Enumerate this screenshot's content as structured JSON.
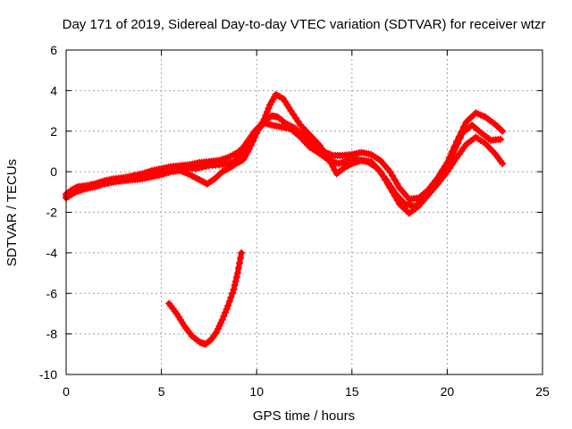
{
  "chart_data": {
    "type": "scatter",
    "title": "Day 171 of 2019, Sidereal Day-to-day VTEC variation (SDTVAR) for receiver wtzr",
    "xlabel": "GPS time / hours",
    "ylabel": "SDTVAR / TECUs",
    "xlim": [
      0,
      25
    ],
    "ylim": [
      -10,
      6
    ],
    "xticks": [
      0,
      5,
      10,
      15,
      20,
      25
    ],
    "yticks": [
      -10,
      -8,
      -6,
      -4,
      -2,
      0,
      2,
      4,
      6
    ],
    "grid": true,
    "marker": "+",
    "series": [
      {
        "name": "main-trace-upper",
        "color": "#ff0000",
        "points": [
          [
            0.0,
            -1.1
          ],
          [
            0.3,
            -0.9
          ],
          [
            0.6,
            -0.75
          ],
          [
            1.0,
            -0.7
          ],
          [
            1.5,
            -0.6
          ],
          [
            2.0,
            -0.45
          ],
          [
            2.5,
            -0.35
          ],
          [
            3.0,
            -0.3
          ],
          [
            3.5,
            -0.2
          ],
          [
            4.0,
            -0.1
          ],
          [
            4.5,
            0.05
          ],
          [
            5.0,
            0.15
          ],
          [
            5.5,
            0.25
          ],
          [
            6.0,
            0.3
          ],
          [
            6.5,
            0.35
          ],
          [
            7.0,
            0.45
          ],
          [
            7.5,
            0.5
          ],
          [
            8.0,
            0.55
          ],
          [
            8.5,
            0.7
          ],
          [
            9.0,
            0.95
          ],
          [
            9.3,
            1.2
          ],
          [
            9.6,
            1.6
          ],
          [
            9.9,
            2.0
          ],
          [
            10.2,
            2.3
          ],
          [
            10.5,
            2.6
          ],
          [
            10.8,
            2.75
          ],
          [
            11.1,
            2.7
          ],
          [
            11.5,
            2.4
          ],
          [
            12.0,
            2.15
          ],
          [
            12.5,
            1.75
          ],
          [
            13.0,
            1.35
          ],
          [
            13.5,
            1.0
          ],
          [
            14.0,
            0.8
          ],
          [
            14.5,
            0.8
          ],
          [
            15.0,
            0.85
          ],
          [
            15.5,
            0.95
          ],
          [
            16.0,
            0.85
          ],
          [
            16.5,
            0.55
          ],
          [
            17.0,
            0.0
          ],
          [
            17.5,
            -0.8
          ],
          [
            18.0,
            -1.35
          ],
          [
            18.5,
            -1.3
          ],
          [
            19.0,
            -0.9
          ],
          [
            19.5,
            -0.3
          ],
          [
            20.0,
            0.45
          ],
          [
            20.5,
            1.5
          ],
          [
            21.0,
            2.45
          ],
          [
            21.5,
            2.9
          ],
          [
            22.0,
            2.7
          ],
          [
            22.5,
            2.35
          ],
          [
            22.9,
            2.0
          ]
        ]
      },
      {
        "name": "main-trace-lower",
        "color": "#ff0000",
        "points": [
          [
            0.0,
            -1.3
          ],
          [
            0.5,
            -1.0
          ],
          [
            1.0,
            -0.85
          ],
          [
            1.5,
            -0.75
          ],
          [
            2.0,
            -0.6
          ],
          [
            2.5,
            -0.5
          ],
          [
            3.0,
            -0.45
          ],
          [
            3.5,
            -0.4
          ],
          [
            4.0,
            -0.35
          ],
          [
            4.5,
            -0.25
          ],
          [
            5.0,
            -0.15
          ],
          [
            5.5,
            0.0
          ],
          [
            6.0,
            0.05
          ],
          [
            6.5,
            -0.15
          ],
          [
            7.0,
            -0.4
          ],
          [
            7.4,
            -0.6
          ],
          [
            7.8,
            -0.35
          ],
          [
            8.2,
            0.0
          ],
          [
            8.6,
            0.2
          ],
          [
            9.0,
            0.45
          ],
          [
            9.3,
            0.6
          ],
          [
            9.6,
            1.1
          ],
          [
            10.0,
            1.9
          ],
          [
            10.4,
            2.6
          ],
          [
            10.7,
            3.3
          ],
          [
            11.0,
            3.8
          ],
          [
            11.4,
            3.6
          ],
          [
            11.8,
            3.0
          ],
          [
            12.3,
            2.3
          ],
          [
            12.8,
            1.8
          ],
          [
            13.3,
            1.3
          ],
          [
            13.8,
            0.6
          ],
          [
            14.2,
            -0.1
          ],
          [
            14.6,
            0.2
          ],
          [
            15.0,
            0.4
          ],
          [
            15.5,
            0.55
          ],
          [
            16.0,
            0.5
          ],
          [
            16.5,
            0.0
          ],
          [
            17.0,
            -0.8
          ],
          [
            17.5,
            -1.6
          ],
          [
            18.0,
            -2.05
          ],
          [
            18.5,
            -1.7
          ],
          [
            19.0,
            -1.15
          ],
          [
            19.5,
            -0.6
          ],
          [
            20.0,
            0.0
          ],
          [
            20.5,
            0.7
          ],
          [
            21.0,
            1.35
          ],
          [
            21.5,
            1.7
          ],
          [
            22.0,
            1.4
          ],
          [
            22.5,
            0.9
          ],
          [
            22.9,
            0.4
          ]
        ]
      },
      {
        "name": "main-trace-middle",
        "color": "#ff0000",
        "points": [
          [
            0.0,
            -1.2
          ],
          [
            0.4,
            -1.0
          ],
          [
            0.8,
            -0.8
          ],
          [
            1.5,
            -0.7
          ],
          [
            2.2,
            -0.55
          ],
          [
            3.0,
            -0.4
          ],
          [
            3.8,
            -0.3
          ],
          [
            4.5,
            -0.2
          ],
          [
            5.2,
            0.0
          ],
          [
            6.0,
            0.2
          ],
          [
            6.8,
            0.15
          ],
          [
            7.5,
            0.3
          ],
          [
            8.2,
            0.35
          ],
          [
            8.8,
            0.5
          ],
          [
            9.2,
            0.85
          ],
          [
            9.6,
            1.4
          ],
          [
            10.0,
            2.0
          ],
          [
            10.4,
            2.4
          ],
          [
            10.8,
            2.3
          ],
          [
            11.3,
            2.2
          ],
          [
            11.8,
            2.1
          ],
          [
            12.3,
            1.7
          ],
          [
            12.8,
            1.2
          ],
          [
            13.3,
            0.9
          ],
          [
            13.8,
            0.55
          ],
          [
            14.3,
            0.4
          ],
          [
            14.8,
            0.55
          ],
          [
            15.3,
            0.6
          ],
          [
            15.8,
            0.5
          ],
          [
            16.3,
            0.2
          ],
          [
            16.8,
            -0.4
          ],
          [
            17.3,
            -1.1
          ],
          [
            17.8,
            -1.6
          ],
          [
            18.3,
            -1.7
          ],
          [
            18.8,
            -1.3
          ],
          [
            19.3,
            -0.8
          ],
          [
            19.8,
            -0.2
          ],
          [
            20.3,
            0.9
          ],
          [
            20.8,
            1.9
          ],
          [
            21.3,
            2.3
          ],
          [
            21.8,
            1.9
          ],
          [
            22.3,
            1.55
          ],
          [
            22.8,
            1.6
          ]
        ]
      },
      {
        "name": "isolated-arc",
        "color": "#ff0000",
        "points": [
          [
            5.4,
            -6.5
          ],
          [
            5.8,
            -7.0
          ],
          [
            6.2,
            -7.6
          ],
          [
            6.6,
            -8.1
          ],
          [
            7.0,
            -8.4
          ],
          [
            7.3,
            -8.5
          ],
          [
            7.6,
            -8.3
          ],
          [
            7.9,
            -7.9
          ],
          [
            8.2,
            -7.3
          ],
          [
            8.5,
            -6.6
          ],
          [
            8.8,
            -5.8
          ],
          [
            9.0,
            -5.0
          ],
          [
            9.2,
            -4.0
          ]
        ]
      }
    ]
  }
}
